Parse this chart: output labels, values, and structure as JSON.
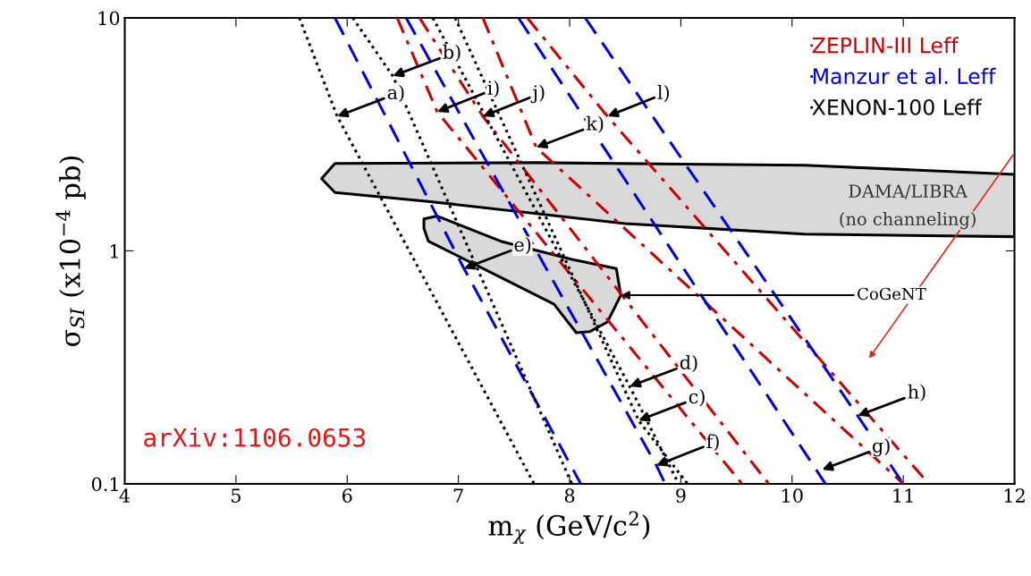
{
  "chart_data": {
    "type": "line",
    "xlabel": "m$_{χ}$ (GeV/c$^{2}$)",
    "ylabel": "σ$_{SI}$ (x10$^{−4}$ pb)",
    "xlim": [
      4,
      12
    ],
    "xticks": [
      4,
      5,
      6,
      7,
      8,
      9,
      10,
      11,
      12
    ],
    "ylim": [
      0.1,
      10
    ],
    "yticks": [
      {
        "value": 0.1,
        "label": "0.1"
      },
      {
        "value": 1,
        "label": "1"
      },
      {
        "value": 10,
        "label": "10"
      }
    ],
    "log": "y",
    "grid": false,
    "legend": "top right",
    "series": [
      {
        "type": "area",
        "color": "#d9d9d9",
        "x": [
          5.77,
          5.89,
          7.7,
          10.11,
          12.0,
          12.0,
          10.11,
          8.5,
          6.73,
          5.89,
          5.77
        ],
        "values": [
          2.04,
          2.37,
          2.39,
          2.33,
          2.13,
          1.15,
          1.18,
          1.31,
          1.63,
          1.78,
          2.04
        ]
      },
      {
        "type": "area",
        "color": "#d9d9d9",
        "x": [
          6.69,
          6.81,
          7.38,
          8.02,
          8.42,
          8.46,
          8.34,
          8.18,
          8.06,
          7.86,
          7.38,
          6.73,
          6.69
        ],
        "values": [
          1.37,
          1.41,
          1.1,
          0.92,
          0.84,
          0.645,
          0.495,
          0.45,
          0.445,
          0.59,
          0.77,
          1.1,
          1.25
        ]
      },
      {
        "name": "ZEPLIN-III Leff",
        "color": "#cc0000",
        "line_style": "dashdot",
        "x": [
          6.45,
          6.81,
          9.55
        ],
        "values": [
          10,
          3.95,
          0.1
        ]
      },
      {
        "color": "#cc0000",
        "line_style": "dashdot",
        "x": [
          6.65,
          7.22,
          9.79
        ],
        "values": [
          10,
          3.78,
          0.1
        ]
      },
      {
        "color": "#cc0000",
        "line_style": "dashdot",
        "x": [
          7.22,
          7.7,
          11.0
        ],
        "values": [
          10,
          2.78,
          0.1
        ]
      },
      {
        "color": "#cc0000",
        "line_style": "dashdot",
        "x": [
          7.62,
          8.34,
          11.23
        ],
        "values": [
          10,
          3.78,
          0.1
        ]
      },
      {
        "name": "Manzur et al. Leff",
        "color": "#0000dd",
        "line_style": "dashed",
        "x": [
          5.89,
          7.05,
          8.1
        ],
        "values": [
          10,
          0.84,
          0.1
        ]
      },
      {
        "color": "#0000dd",
        "line_style": "dashed",
        "x": [
          6.53,
          8.78,
          8.86
        ],
        "values": [
          10,
          0.12,
          0.1
        ]
      },
      {
        "color": "#0000dd",
        "line_style": "dashed",
        "x": [
          7.54,
          10.3
        ],
        "values": [
          10,
          0.1
        ]
      },
      {
        "color": "#0000dd",
        "line_style": "dashed",
        "x": [
          8.14,
          10.59,
          11.0
        ],
        "values": [
          10,
          0.196,
          0.1
        ]
      },
      {
        "name": "XENON-100 Leff",
        "color": "#000000",
        "line_style": "dotted",
        "x": [
          5.57,
          5.91,
          7.68
        ],
        "values": [
          10,
          3.78,
          0.1
        ]
      },
      {
        "color": "#000000",
        "line_style": "dotted",
        "x": [
          6.05,
          6.41,
          8.02
        ],
        "values": [
          10,
          5.63,
          0.1
        ]
      },
      {
        "color": "#000000",
        "line_style": "dotted",
        "x": [
          6.97,
          8.62,
          9.06
        ],
        "values": [
          10,
          0.187,
          0.1
        ]
      },
      {
        "color": "#000000",
        "line_style": "dotted",
        "x": [
          6.77,
          8.54,
          8.98
        ],
        "values": [
          10,
          0.262,
          0.1
        ]
      }
    ],
    "annotations": [
      {
        "text": "a)",
        "x": 5.91,
        "y": 3.78
      },
      {
        "text": "b)",
        "x": 6.41,
        "y": 5.63
      },
      {
        "text": "c)",
        "x": 8.62,
        "y": 0.187
      },
      {
        "text": "d)",
        "x": 8.54,
        "y": 0.262
      },
      {
        "text": "e)",
        "x": 7.05,
        "y": 0.84
      },
      {
        "text": "f)",
        "x": 8.78,
        "y": 0.12
      },
      {
        "text": "g)",
        "x": 10.27,
        "y": 0.115
      },
      {
        "text": "h)",
        "x": 10.59,
        "y": 0.196
      },
      {
        "text": "i)",
        "x": 6.81,
        "y": 3.95
      },
      {
        "text": "j)",
        "x": 7.22,
        "y": 3.78
      },
      {
        "text": "k)",
        "x": 7.7,
        "y": 2.78
      },
      {
        "text": "l)",
        "x": 8.34,
        "y": 3.78
      },
      {
        "text": "CoGeNT",
        "x": 8.46,
        "y": 0.645
      },
      "DAMA/LIBRA",
      "(no channeling)",
      "arXiv:1106.0653"
    ]
  }
}
